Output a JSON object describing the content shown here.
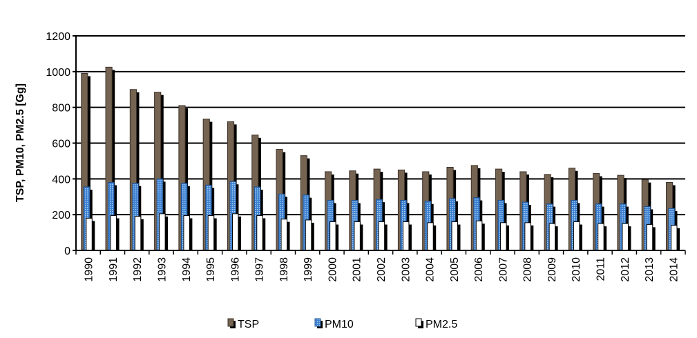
{
  "chart_data": {
    "type": "bar",
    "title": "",
    "xlabel": "",
    "ylabel": "TSP, PM10, PM2.5 [Gg]",
    "ylim": [
      0,
      1200
    ],
    "yticks": [
      0,
      200,
      400,
      600,
      800,
      1000,
      1200
    ],
    "grid": true,
    "legend_position": "bottom",
    "categories": [
      "1990",
      "1991",
      "1992",
      "1993",
      "1994",
      "1995",
      "1996",
      "1997",
      "1998",
      "1999",
      "2000",
      "2001",
      "2002",
      "2003",
      "2004",
      "2005",
      "2006",
      "2007",
      "2008",
      "2009",
      "2010",
      "2011",
      "2012",
      "2013",
      "2014"
    ],
    "series": [
      {
        "name": "TSP",
        "color": "#756452",
        "values": [
          990,
          1025,
          900,
          885,
          810,
          735,
          720,
          645,
          565,
          530,
          440,
          445,
          455,
          450,
          440,
          465,
          475,
          455,
          440,
          425,
          460,
          430,
          420,
          395,
          380
        ]
      },
      {
        "name": "PM10",
        "color": "#3a7fd0",
        "values": [
          355,
          380,
          375,
          400,
          375,
          365,
          385,
          355,
          315,
          310,
          280,
          280,
          285,
          280,
          275,
          290,
          295,
          280,
          270,
          260,
          280,
          260,
          260,
          245,
          235
        ]
      },
      {
        "name": "PM2.5",
        "color": "#ffffff",
        "values": [
          180,
          195,
          190,
          205,
          195,
          195,
          205,
          195,
          175,
          170,
          160,
          160,
          160,
          160,
          155,
          160,
          165,
          155,
          155,
          150,
          160,
          150,
          150,
          145,
          140
        ]
      }
    ]
  }
}
